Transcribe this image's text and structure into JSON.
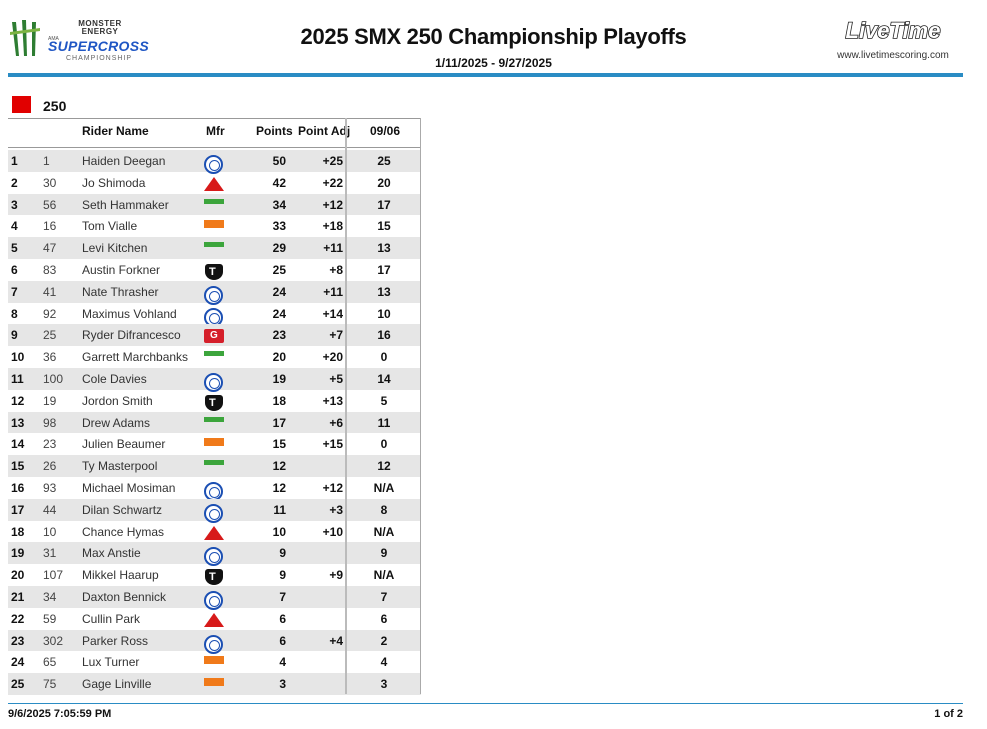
{
  "header": {
    "brand_top": "MONSTER ENERGY",
    "brand_ama": "AMA",
    "brand_sx": "SUPERCROSS",
    "brand_champ": "CHAMPIONSHIP",
    "title": "2025 SMX 250 Championship Playoffs",
    "date_range": "1/11/2025 - 9/27/2025",
    "timing_logo": "LiveTime",
    "timing_url": "www.livetimescoring.com",
    "accent_color": "#2a8cc4"
  },
  "class": {
    "label": "250",
    "swatch_color": "#e10000"
  },
  "table": {
    "headers": {
      "rider": "Rider Name",
      "mfr": "Mfr",
      "points": "Points",
      "adj": "Point Adj",
      "race": "09/06"
    },
    "rows": [
      {
        "pos": "1",
        "num": "1",
        "name": "Haiden Deegan",
        "mfr": "yamaha",
        "points": "50",
        "adj": "+25",
        "race": "25"
      },
      {
        "pos": "2",
        "num": "30",
        "name": "Jo Shimoda",
        "mfr": "honda",
        "points": "42",
        "adj": "+22",
        "race": "20"
      },
      {
        "pos": "3",
        "num": "56",
        "name": "Seth Hammaker",
        "mfr": "kawasaki",
        "points": "34",
        "adj": "+12",
        "race": "17"
      },
      {
        "pos": "4",
        "num": "16",
        "name": "Tom Vialle",
        "mfr": "ktm",
        "points": "33",
        "adj": "+18",
        "race": "15"
      },
      {
        "pos": "5",
        "num": "47",
        "name": "Levi Kitchen",
        "mfr": "kawasaki",
        "points": "29",
        "adj": "+11",
        "race": "13"
      },
      {
        "pos": "6",
        "num": "83",
        "name": "Austin Forkner",
        "mfr": "triumph",
        "points": "25",
        "adj": "+8",
        "race": "17"
      },
      {
        "pos": "7",
        "num": "41",
        "name": "Nate Thrasher",
        "mfr": "yamaha",
        "points": "24",
        "adj": "+11",
        "race": "13"
      },
      {
        "pos": "8",
        "num": "92",
        "name": "Maximus Vohland",
        "mfr": "yamaha",
        "points": "24",
        "adj": "+14",
        "race": "10"
      },
      {
        "pos": "9",
        "num": "25",
        "name": "Ryder Difrancesco",
        "mfr": "gasgas",
        "points": "23",
        "adj": "+7",
        "race": "16"
      },
      {
        "pos": "10",
        "num": "36",
        "name": "Garrett Marchbanks",
        "mfr": "kawasaki",
        "points": "20",
        "adj": "+20",
        "race": "0"
      },
      {
        "pos": "11",
        "num": "100",
        "name": "Cole Davies",
        "mfr": "yamaha",
        "points": "19",
        "adj": "+5",
        "race": "14"
      },
      {
        "pos": "12",
        "num": "19",
        "name": "Jordon Smith",
        "mfr": "triumph",
        "points": "18",
        "adj": "+13",
        "race": "5"
      },
      {
        "pos": "13",
        "num": "98",
        "name": "Drew Adams",
        "mfr": "kawasaki",
        "points": "17",
        "adj": "+6",
        "race": "11"
      },
      {
        "pos": "14",
        "num": "23",
        "name": "Julien Beaumer",
        "mfr": "ktm",
        "points": "15",
        "adj": "+15",
        "race": "0"
      },
      {
        "pos": "15",
        "num": "26",
        "name": "Ty Masterpool",
        "mfr": "kawasaki",
        "points": "12",
        "adj": "",
        "race": "12"
      },
      {
        "pos": "16",
        "num": "93",
        "name": "Michael Mosiman",
        "mfr": "yamaha",
        "points": "12",
        "adj": "+12",
        "race": "N/A"
      },
      {
        "pos": "17",
        "num": "44",
        "name": "Dilan Schwartz",
        "mfr": "yamaha",
        "points": "11",
        "adj": "+3",
        "race": "8"
      },
      {
        "pos": "18",
        "num": "10",
        "name": "Chance Hymas",
        "mfr": "honda",
        "points": "10",
        "adj": "+10",
        "race": "N/A"
      },
      {
        "pos": "19",
        "num": "31",
        "name": "Max Anstie",
        "mfr": "yamaha",
        "points": "9",
        "adj": "",
        "race": "9"
      },
      {
        "pos": "20",
        "num": "107",
        "name": "Mikkel Haarup",
        "mfr": "triumph",
        "points": "9",
        "adj": "+9",
        "race": "N/A"
      },
      {
        "pos": "21",
        "num": "34",
        "name": "Daxton Bennick",
        "mfr": "yamaha",
        "points": "7",
        "adj": "",
        "race": "7"
      },
      {
        "pos": "22",
        "num": "59",
        "name": "Cullin Park",
        "mfr": "honda",
        "points": "6",
        "adj": "",
        "race": "6"
      },
      {
        "pos": "23",
        "num": "302",
        "name": "Parker Ross",
        "mfr": "yamaha",
        "points": "6",
        "adj": "+4",
        "race": "2"
      },
      {
        "pos": "24",
        "num": "65",
        "name": "Lux Turner",
        "mfr": "ktm",
        "points": "4",
        "adj": "",
        "race": "4"
      },
      {
        "pos": "25",
        "num": "75",
        "name": "Gage Linville",
        "mfr": "ktm",
        "points": "3",
        "adj": "",
        "race": "3"
      }
    ]
  },
  "footer": {
    "printed": "9/6/2025 7:05:59 PM",
    "page": "1 of 2"
  }
}
